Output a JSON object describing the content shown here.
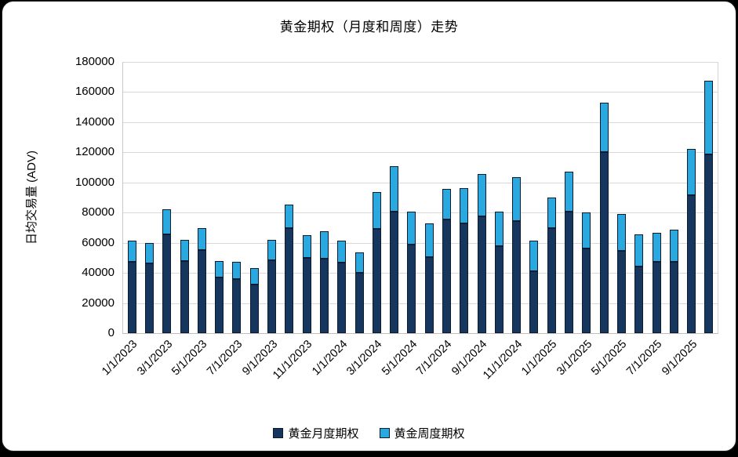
{
  "title": "黄金期权（月度和周度）走势",
  "colors": {
    "monthly": "#17365D",
    "weekly": "#29A9E0",
    "bar_outline": "#0B1C31",
    "gridline": "#D9D9D9",
    "axis_line": "#BFBFBF",
    "background": "#FFFFFF",
    "frame_border": "#000000",
    "text": "#000000"
  },
  "chart_data": {
    "type": "bar",
    "stacked": true,
    "title": "黄金期权（月度和周度）走势",
    "xlabel": "",
    "ylabel": "日均交易量 (ADV)",
    "ylim": [
      0,
      180000
    ],
    "ytick_step": 20000,
    "xtick_every": 2,
    "grid": "horizontal",
    "legend_position": "bottom",
    "categories": [
      "1/1/2023",
      "2/1/2023",
      "3/1/2023",
      "4/1/2023",
      "5/1/2023",
      "6/1/2023",
      "7/1/2023",
      "8/1/2023",
      "9/1/2023",
      "10/1/2023",
      "11/1/2023",
      "12/1/2023",
      "1/1/2024",
      "2/1/2024",
      "3/1/2024",
      "4/1/2024",
      "5/1/2024",
      "6/1/2024",
      "7/1/2024",
      "8/1/2024",
      "9/1/2024",
      "10/1/2024",
      "11/1/2024",
      "12/1/2024",
      "1/1/2025",
      "2/1/2025",
      "3/1/2025",
      "4/1/2025",
      "5/1/2025",
      "6/1/2025",
      "7/1/2025",
      "8/1/2025",
      "9/1/2025",
      "10/1/2025"
    ],
    "series": [
      {
        "name": "黄金月度期权",
        "color": "#17365D",
        "values": [
          47500,
          46500,
          65500,
          48000,
          55000,
          37000,
          36000,
          32500,
          48500,
          69500,
          50000,
          49500,
          47000,
          40000,
          69000,
          80500,
          59000,
          50500,
          75500,
          73000,
          77500,
          58000,
          74500,
          41000,
          69500,
          80500,
          56000,
          120000,
          54500,
          44500,
          47500,
          47500,
          91500,
          118500
        ]
      },
      {
        "name": "黄金周度期权",
        "color": "#29A9E0",
        "values": [
          14000,
          13500,
          16500,
          14000,
          14500,
          11000,
          11500,
          10500,
          13500,
          16000,
          15000,
          18000,
          14500,
          13500,
          24500,
          30500,
          21500,
          22500,
          20500,
          23500,
          28000,
          22500,
          29000,
          20500,
          20500,
          26500,
          24000,
          33000,
          24500,
          21000,
          19000,
          21000,
          31000,
          49000
        ]
      }
    ]
  }
}
